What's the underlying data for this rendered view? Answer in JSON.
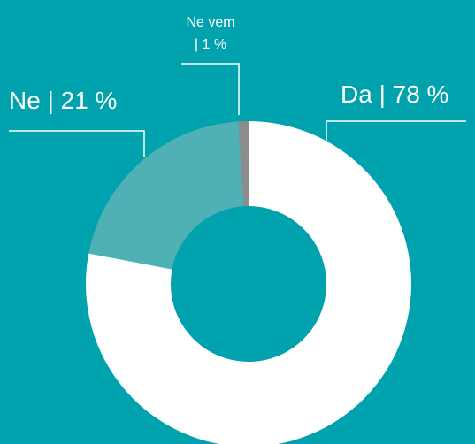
{
  "chart_data": {
    "type": "donut",
    "categories": [
      "Da",
      "Ne",
      "Ne vem"
    ],
    "values": [
      78,
      21,
      1
    ],
    "value_labels": [
      "Da | 78 %",
      "Ne | 21 %",
      "Ne vem\n| 1 %"
    ],
    "colors": [
      "#ffffff",
      "#4fb0b5",
      "#8c8c8c"
    ]
  }
}
